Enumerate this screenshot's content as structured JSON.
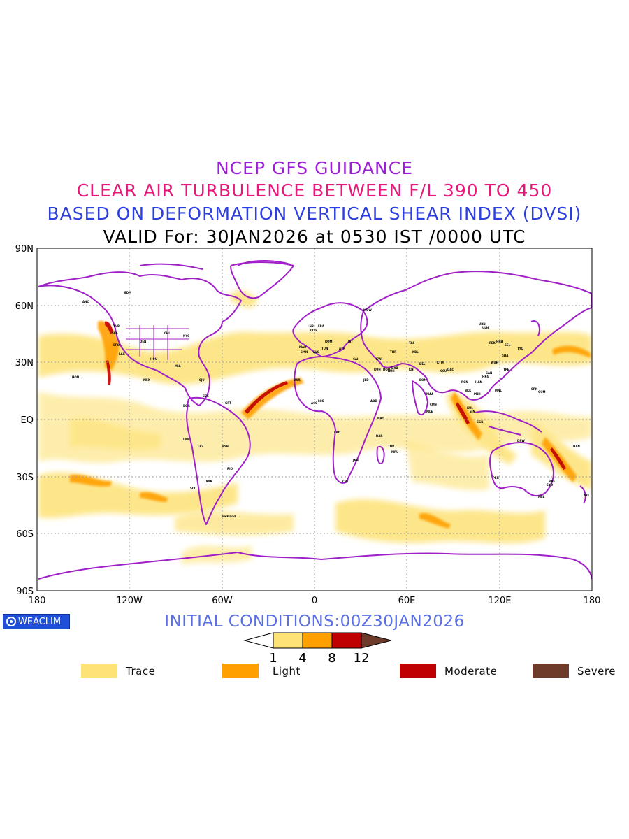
{
  "titles": {
    "line1": "NCEP GFS GUIDANCE",
    "line2": "CLEAR AIR TURBULENCE BETWEEN F/L 390 TO 450",
    "line3": "BASED ON DEFORMATION VERTICAL SHEAR INDEX (DVSI)",
    "line4": "VALID For: 30JAN2026 at 0530 IST /0000 UTC"
  },
  "axes": {
    "y_ticks": [
      "90N",
      "60N",
      "30N",
      "EQ",
      "30S",
      "60S",
      "90S"
    ],
    "x_ticks": [
      "180",
      "120W",
      "60W",
      "0",
      "60E",
      "120E",
      "180"
    ]
  },
  "initial_conditions": "INITIAL CONDITIONS:00Z30JAN2026",
  "brand": "WEACLIM",
  "colorbar": {
    "ticks": [
      "1",
      "4",
      "8",
      "12"
    ],
    "colors": [
      "#ffffff",
      "#fde275",
      "#ff9f00",
      "#c00000",
      "#6e3b2b"
    ]
  },
  "legend": [
    {
      "label": "Trace",
      "color": "#fde275"
    },
    {
      "label": "Light",
      "color": "#ff9f00"
    },
    {
      "label": "Moderate",
      "color": "#c00000"
    },
    {
      "label": "Severe",
      "color": "#6e3b2b"
    }
  ],
  "map_colors": {
    "coast": "#a020c8",
    "grid": "#9a9a9a"
  },
  "stations": [
    "ANC",
    "EDM",
    "YVR",
    "SEA",
    "SFO",
    "LAX",
    "DEN",
    "CHI",
    "NYC",
    "MIA",
    "HOU",
    "MEX",
    "HON",
    "SJU",
    "CCS",
    "BOG",
    "LIM",
    "LPZ",
    "SCL",
    "BSB",
    "RIO",
    "BUE",
    "STG",
    "Falkland",
    "GRT",
    "MAD",
    "LHR",
    "CDG",
    "FRA",
    "ROM",
    "ATH",
    "IST",
    "CAI",
    "JED",
    "RUH",
    "DXB",
    "KHI",
    "DEL",
    "BOM",
    "MAA",
    "CMB",
    "CCU",
    "DAC",
    "KTM",
    "KBL",
    "TAS",
    "MOW",
    "AUH",
    "DOH",
    "KWI",
    "THR",
    "ADD",
    "NBO",
    "LOS",
    "ACC",
    "DKR",
    "CMN",
    "ALG",
    "TUN",
    "LAD",
    "JNB",
    "CPT",
    "MRU",
    "TNR",
    "DAR",
    "MLE",
    "BKK",
    "SIN",
    "KUL",
    "CGK",
    "MNL",
    "HKG",
    "PEK",
    "SHA",
    "TPE",
    "SEL",
    "TYO",
    "PER",
    "DRW",
    "BNE",
    "SYD",
    "MEL",
    "AKL",
    "GUM",
    "SPN",
    "NAN",
    "UBN",
    "ULN",
    "HRB",
    "WUH",
    "CAN",
    "PNH",
    "HAN",
    "RGN"
  ]
}
